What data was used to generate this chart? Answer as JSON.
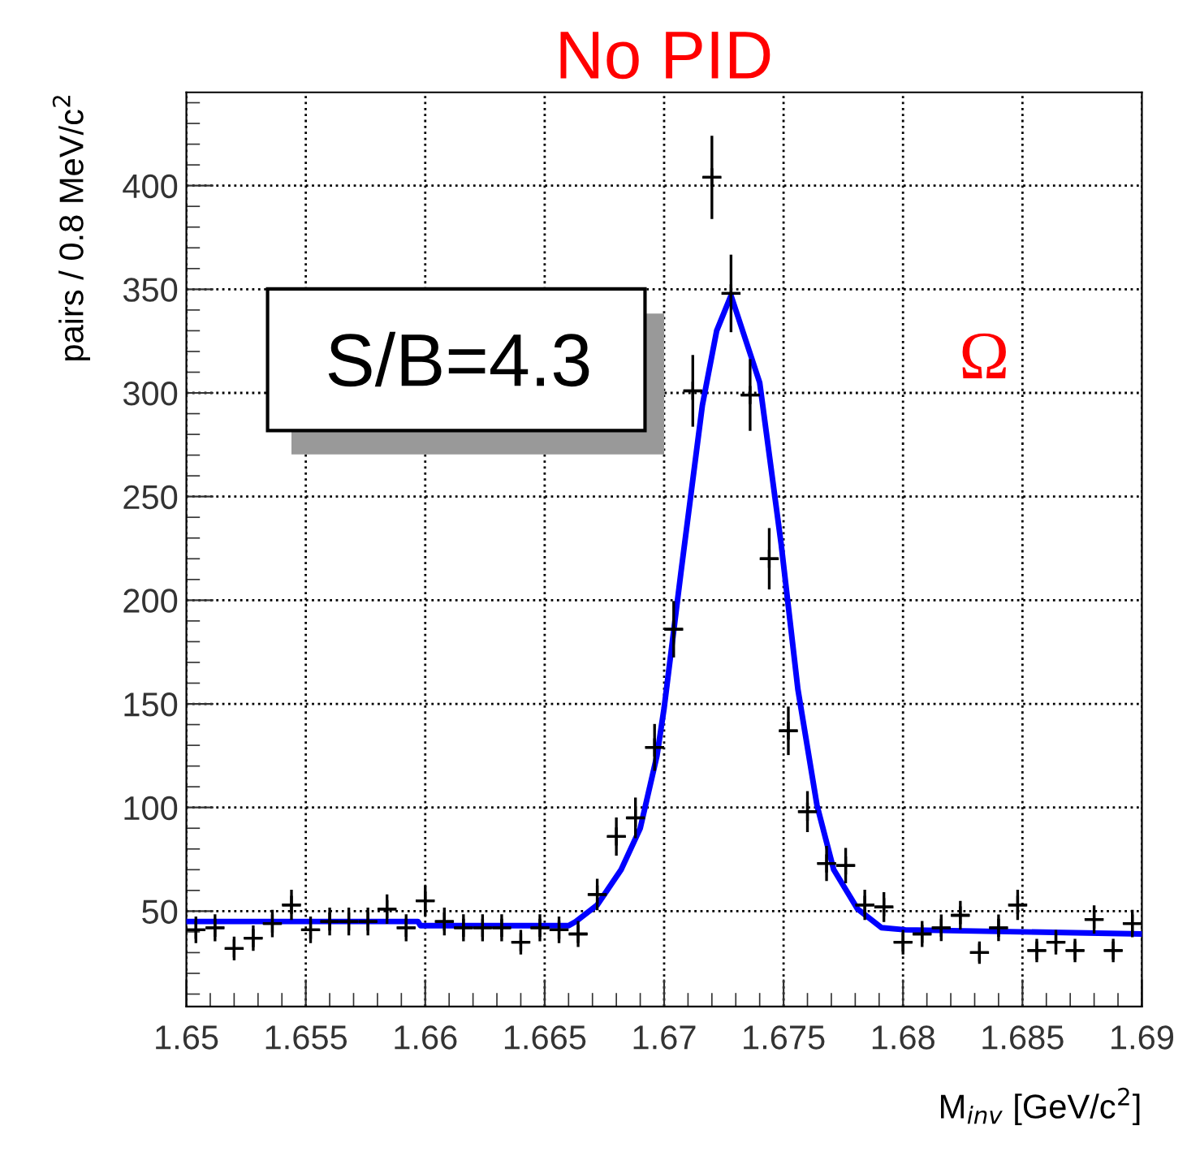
{
  "chart_data": {
    "type": "scatter",
    "title": "No PID",
    "xlabel": "M$_{inv}$ [GeV/c$^{2}$]",
    "ylabel": "pairs / 0.8 MeV/c$^{2}$",
    "annotations": [
      "S/B=4.3",
      "Ω"
    ],
    "xlim": [
      1.65,
      1.69
    ],
    "xticks": [
      1.65,
      1.655,
      1.66,
      1.665,
      1.67,
      1.675,
      1.68,
      1.685,
      1.69
    ],
    "ylim": [
      4,
      445
    ],
    "yticks": [
      50,
      100,
      150,
      200,
      250,
      300,
      350,
      400
    ],
    "grid": true,
    "legend": false,
    "marker": "cross",
    "series": [
      {
        "color": "#000000",
        "x": [
          1.6504,
          1.6512,
          1.652,
          1.6528,
          1.6536,
          1.6544,
          1.6552,
          1.656,
          1.6568,
          1.6576,
          1.6584,
          1.6592,
          1.66,
          1.6608,
          1.6616,
          1.6624,
          1.6632,
          1.664,
          1.6648,
          1.6656,
          1.6664,
          1.6672,
          1.668,
          1.6688,
          1.6696,
          1.6704,
          1.6712,
          1.672,
          1.6728,
          1.6736,
          1.6744,
          1.6752,
          1.676,
          1.6768,
          1.6776,
          1.6784,
          1.6792,
          1.68,
          1.6808,
          1.6816,
          1.6824,
          1.6832,
          1.684,
          1.6848,
          1.6856,
          1.6864,
          1.6872,
          1.688,
          1.6888,
          1.6896
        ],
        "values": [
          41,
          42,
          32,
          37,
          44,
          53,
          41,
          45,
          45,
          45,
          51,
          42,
          55,
          45,
          42,
          42,
          42,
          35,
          42,
          41,
          39,
          58,
          86,
          95,
          129,
          186,
          301,
          404,
          348,
          299,
          220,
          137,
          98,
          73,
          72,
          53,
          52,
          35,
          39,
          42,
          48,
          30,
          42,
          53,
          31,
          35,
          31,
          46,
          31,
          44
        ],
        "errors": [
          6.4,
          6.5,
          5.7,
          6.1,
          6.6,
          7.3,
          6.4,
          6.7,
          6.7,
          6.7,
          7.1,
          6.5,
          7.4,
          6.7,
          6.5,
          6.5,
          6.5,
          5.9,
          6.5,
          6.4,
          6.3,
          7.6,
          9.2,
          9.8,
          11.3,
          13.6,
          17.3,
          20.1,
          18.7,
          17.3,
          14.8,
          11.7,
          9.9,
          8.5,
          8.5,
          7.3,
          7.2,
          5.9,
          6.3,
          6.4,
          6.9,
          5.4,
          6.4,
          7.3,
          5.6,
          5.9,
          5.6,
          6.8,
          5.6,
          6.6
        ],
        "xerrors": [
          0.0004,
          0.0004,
          0.0004,
          0.0004,
          0.0004,
          0.0004,
          0.0004,
          0.0004,
          0.0004,
          0.0004,
          0.0004,
          0.0004,
          0.0004,
          0.0004,
          0.0004,
          0.0004,
          0.0004,
          0.0004,
          0.0004,
          0.0004,
          0.0004,
          0.0004,
          0.0004,
          0.0004,
          0.0004,
          0.0004,
          0.0004,
          0.0004,
          0.0004,
          0.0004,
          0.0004,
          0.0004,
          0.0004,
          0.0004,
          0.0004,
          0.0004,
          0.0004,
          0.0004,
          0.0004,
          0.0004,
          0.0004,
          0.0004,
          0.0004,
          0.0004,
          0.0004,
          0.0004,
          0.0004,
          0.0004,
          0.0004,
          0.0004
        ]
      },
      {
        "type": "line",
        "marker": "none",
        "color": "#0000ff",
        "line_style": "solid",
        "x": [
          1.65,
          1.6597,
          1.6598,
          1.666,
          1.6663,
          1.6672,
          1.6682,
          1.669,
          1.6697,
          1.67,
          1.6707,
          1.6716,
          1.6722,
          1.6728,
          1.674,
          1.6749,
          1.6756,
          1.6764,
          1.6771,
          1.6781,
          1.6791,
          1.6801,
          1.69
        ],
        "values": [
          45,
          45,
          43,
          43,
          45,
          53,
          70,
          90,
          125,
          148,
          213,
          294,
          330,
          347,
          305,
          227,
          157,
          101,
          70,
          51,
          42,
          41,
          39
        ]
      }
    ]
  }
}
